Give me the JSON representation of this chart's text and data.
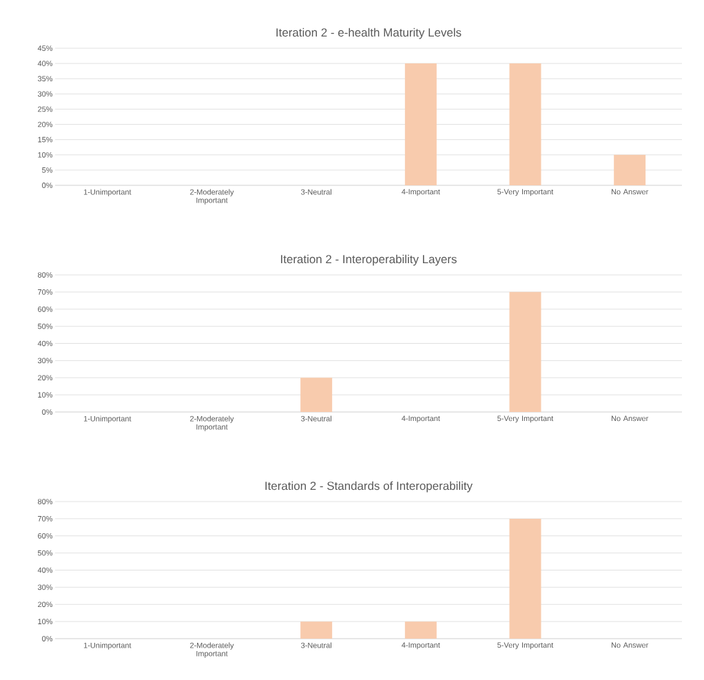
{
  "chart_data": [
    {
      "type": "bar",
      "title": "Iteration 2 - e-health Maturity Levels",
      "categories": [
        "1-Unimportant",
        "2-Moderately Important",
        "3-Neutral",
        "4-Important",
        "5-Very Important",
        "No Answer"
      ],
      "values": [
        0,
        0,
        0,
        40,
        40,
        10
      ],
      "color": "#f8cbad",
      "ylim": [
        0,
        45
      ],
      "yticks": [
        {
          "value": 0,
          "label": "0%"
        },
        {
          "value": 5,
          "label": "5%"
        },
        {
          "value": 10,
          "label": "10%"
        },
        {
          "value": 15,
          "label": "15%"
        },
        {
          "value": 20,
          "label": "20%"
        },
        {
          "value": 25,
          "label": "25%"
        },
        {
          "value": 30,
          "label": "30%"
        },
        {
          "value": 35,
          "label": "35%"
        },
        {
          "value": 40,
          "label": "40%"
        },
        {
          "value": 45,
          "label": "45%"
        }
      ],
      "grid": "y"
    },
    {
      "type": "bar",
      "title": "Iteration 2 - Interoperability Layers",
      "categories": [
        "1-Unimportant",
        "2-Moderately Important",
        "3-Neutral",
        "4-Important",
        "5-Very Important",
        "No Answer"
      ],
      "values": [
        0,
        0,
        20,
        0,
        70,
        0
      ],
      "color": "#f8cbad",
      "ylim": [
        0,
        80
      ],
      "yticks": [
        {
          "value": 0,
          "label": "0%"
        },
        {
          "value": 10,
          "label": "10%"
        },
        {
          "value": 20,
          "label": "20%"
        },
        {
          "value": 30,
          "label": "30%"
        },
        {
          "value": 40,
          "label": "40%"
        },
        {
          "value": 50,
          "label": "50%"
        },
        {
          "value": 60,
          "label": "60%"
        },
        {
          "value": 70,
          "label": "70%"
        },
        {
          "value": 80,
          "label": "80%"
        }
      ],
      "grid": "y"
    },
    {
      "type": "bar",
      "title": "Iteration 2 - Standards of Interoperability",
      "categories": [
        "1-Unimportant",
        "2-Moderately Important",
        "3-Neutral",
        "4-Important",
        "5-Very Important",
        "No Answer"
      ],
      "values": [
        0,
        0,
        10,
        10,
        70,
        0
      ],
      "color": "#f8cbad",
      "ylim": [
        0,
        80
      ],
      "yticks": [
        {
          "value": 0,
          "label": "0%"
        },
        {
          "value": 10,
          "label": "10%"
        },
        {
          "value": 20,
          "label": "20%"
        },
        {
          "value": 30,
          "label": "30%"
        },
        {
          "value": 40,
          "label": "40%"
        },
        {
          "value": 50,
          "label": "50%"
        },
        {
          "value": 60,
          "label": "60%"
        },
        {
          "value": 70,
          "label": "70%"
        },
        {
          "value": 80,
          "label": "80%"
        }
      ],
      "grid": "y"
    }
  ]
}
